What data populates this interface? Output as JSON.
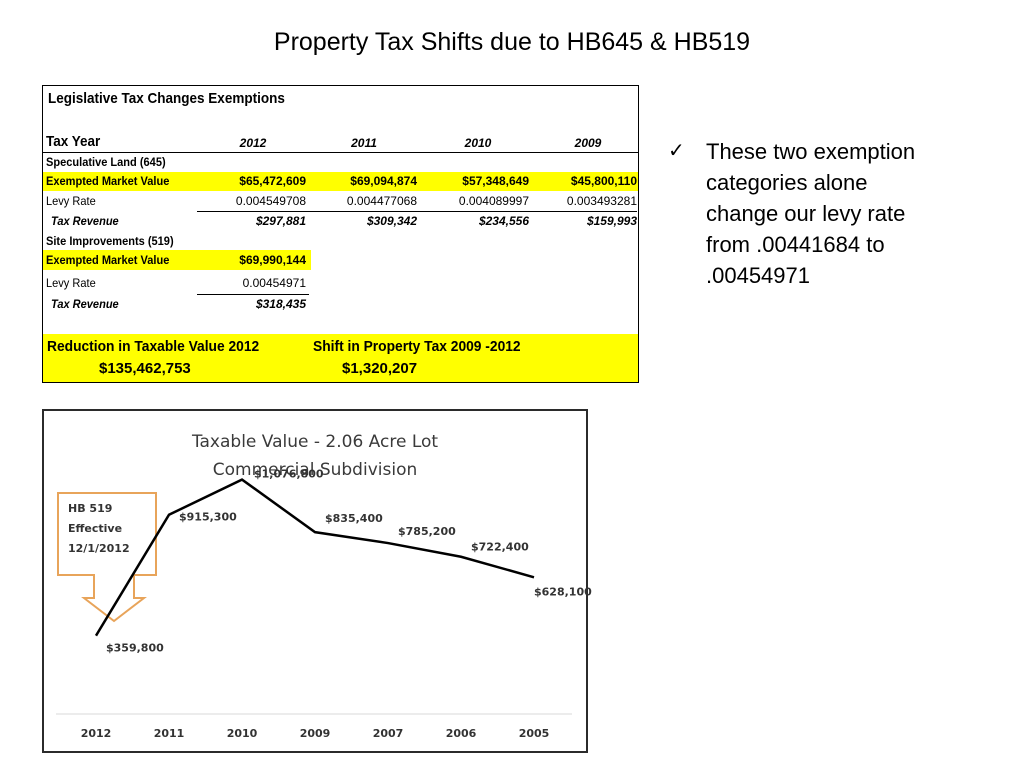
{
  "slide": {
    "title": "Property Tax Shifts due to  HB645 & HB519"
  },
  "table": {
    "heading": "Legislative Tax Changes Exemptions",
    "tax_year_label": "Tax Year",
    "years": [
      "2012",
      "2011",
      "2010",
      "2009"
    ],
    "speculative": {
      "section_label": "Speculative Land (645)",
      "market_label": "Exempted Market Value",
      "market_values": [
        "$65,472,609",
        "$69,094,874",
        "$57,348,649",
        "$45,800,110"
      ],
      "levy_label": "Levy Rate",
      "levy_values": [
        "0.004549708",
        "0.004477068",
        "0.004089997",
        "0.003493281"
      ],
      "revenue_label": "Tax Revenue",
      "revenue_values": [
        "$297,881",
        "$309,342",
        "$234,556",
        "$159,993"
      ]
    },
    "site": {
      "section_label": "Site Improvements (519)",
      "market_label": "Exempted Market Value",
      "market_value": "$69,990,144",
      "levy_label": "Levy Rate",
      "levy_value": "0.00454971",
      "revenue_label": "Tax Revenue",
      "revenue_value": "$318,435"
    },
    "summary": {
      "reduction_label": "Reduction in Taxable Value 2012",
      "reduction_value": "$135,462,753",
      "shift_label": "Shift in Property Tax 2009 -2012",
      "shift_value": "$1,320,207"
    }
  },
  "bullet": {
    "icon": "check-icon",
    "lines": [
      "These two exemption",
      "categories alone",
      "change our levy rate",
      "from  .00441684 to",
      ".00454971"
    ]
  },
  "chart_data": {
    "type": "line",
    "title": "Taxable Value - 2.06 Acre Lot",
    "subtitle": "Commercial Subdivision",
    "categories": [
      "2012",
      "2011",
      "2010",
      "2009",
      "2007",
      "2006",
      "2005"
    ],
    "values": [
      359800,
      915300,
      1076800,
      835400,
      785200,
      722400,
      628100
    ],
    "data_labels": [
      "$359,800",
      "$915,300",
      "$1,076,800",
      "$835,400",
      "$785,200",
      "$722,400",
      "$628,100"
    ],
    "ylim": [
      0,
      1300000
    ],
    "grid": false,
    "annotation": {
      "lines": [
        "HB 519",
        "Effective",
        "12/1/2012"
      ],
      "color": "#e8a45a"
    },
    "line_color": "#000000"
  }
}
